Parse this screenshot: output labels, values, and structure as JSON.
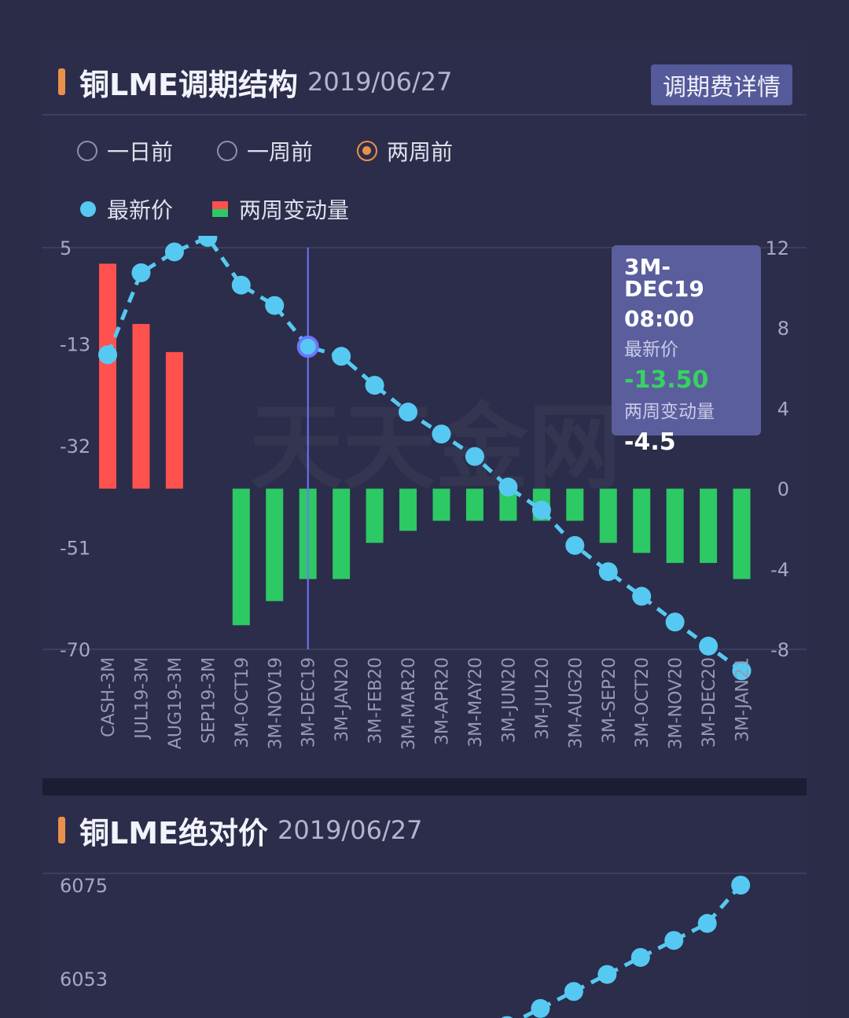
{
  "panel1": {
    "title": "铜LME调期结构",
    "date": "2019/06/27",
    "detail_button": "调期费详情",
    "radios": [
      {
        "label": "一日前",
        "checked": false
      },
      {
        "label": "一周前",
        "checked": false
      },
      {
        "label": "两周前",
        "checked": true
      }
    ],
    "legend": {
      "price": "最新价",
      "change": "两周变动量"
    },
    "tooltip": {
      "name": "3M-DEC19",
      "time": "08:00",
      "price_label": "最新价",
      "price_value": "-13.50",
      "change_label": "两周变动量",
      "change_value": "-4.5"
    }
  },
  "panel2": {
    "title": "铜LME绝对价",
    "date": "2019/06/27"
  },
  "colors": {
    "price_line": "#56c9f2",
    "bar_up": "#ff514d",
    "bar_down": "#2dc964",
    "accent": "#e8914a"
  },
  "chart_data": [
    {
      "type": "bar+line",
      "categories": [
        "CASH-3M",
        "JUL19-3M",
        "AUG19-3M",
        "SEP19-3M",
        "3M-OCT19",
        "3M-NOV19",
        "3M-DEC19",
        "3M-JAN20",
        "3M-FEB20",
        "3M-MAR20",
        "3M-APR20",
        "3M-MAY20",
        "3M-JUN20",
        "3M-JUL20",
        "3M-AUG20",
        "3M-SEP20",
        "3M-OCT20",
        "3M-NOV20",
        "3M-DEC20",
        "3M-JAN21"
      ],
      "series": [
        {
          "name": "最新价",
          "axis": "left",
          "style": "dashed-line-markers",
          "values": [
            -15.0,
            0.3,
            4.2,
            6.9,
            -2.0,
            -5.8,
            -13.5,
            -15.3,
            -20.7,
            -25.7,
            -29.8,
            -34.0,
            -39.7,
            -44.0,
            -50.6,
            -55.5,
            -60.1,
            -64.9,
            -69.4,
            -74.0
          ]
        },
        {
          "name": "两周变动量",
          "axis": "right",
          "style": "bar",
          "values": [
            11.2,
            8.2,
            6.8,
            0,
            -6.8,
            -5.6,
            -4.5,
            -4.5,
            -2.7,
            -2.1,
            -1.6,
            -1.6,
            -1.6,
            -1.6,
            -1.6,
            -2.7,
            -3.2,
            -3.7,
            -3.7,
            -4.5
          ]
        }
      ],
      "left_axis": {
        "ticks": [
          5,
          -13,
          -32,
          -51,
          -70
        ],
        "range": [
          5,
          -70
        ]
      },
      "right_axis": {
        "ticks": [
          12,
          8,
          4,
          0,
          -4,
          -8
        ],
        "range": [
          12,
          -8
        ]
      },
      "crosshair_category": "3M-DEC19",
      "watermark": "天天金网"
    },
    {
      "type": "line",
      "series": [
        {
          "name": "绝对价",
          "values": [
            6042,
            6046,
            6050,
            6054,
            6058,
            6062,
            6066,
            6075
          ]
        }
      ],
      "left_axis": {
        "ticks": [
          6075,
          6053
        ]
      }
    }
  ]
}
